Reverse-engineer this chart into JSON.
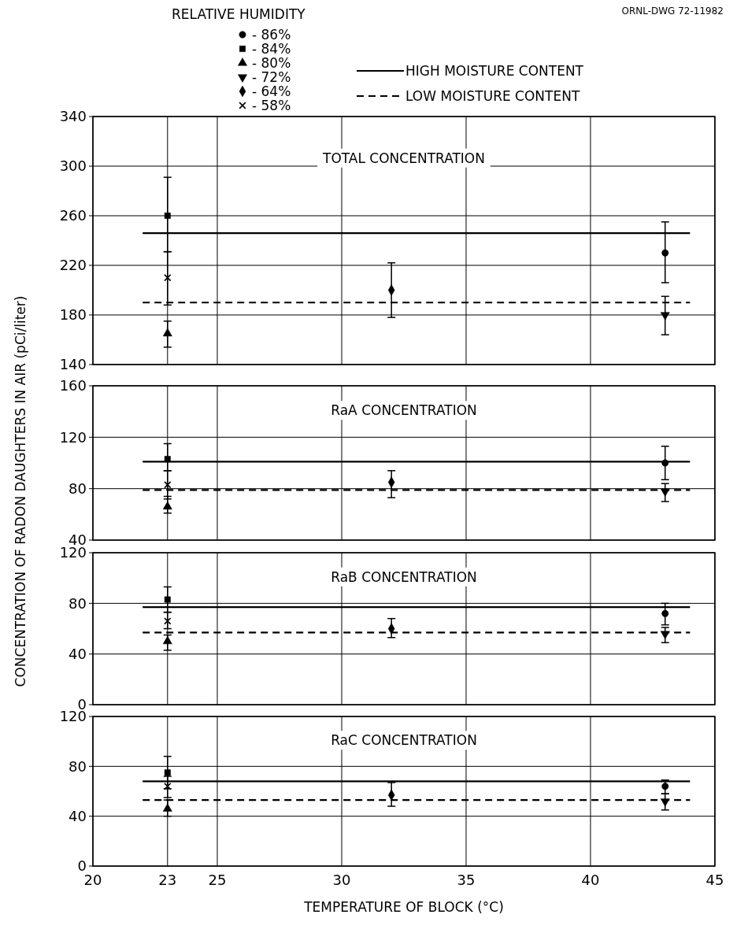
{
  "chart_data": [
    {
      "type": "scatter",
      "title": "TOTAL CONCENTRATION",
      "ylabel": "CONCENTRATION OF RADON DAUGHTERS IN AIR (pCi/liter)",
      "legend_title": "RELATIVE HUMIDITY",
      "annotations": [
        "ORNL-DWG 72-11982"
      ],
      "xlim": [
        20,
        45
      ],
      "xticks": [
        20,
        23,
        25,
        30,
        35,
        40,
        45
      ],
      "ylim": [
        140,
        340
      ],
      "yticks": [
        140,
        180,
        220,
        260,
        300,
        340
      ],
      "grid": true,
      "legend": "top",
      "tick_labels": "y",
      "series": [
        {
          "name": "- 86%",
          "color": "#000000",
          "marker": "circle",
          "x": [
            43
          ],
          "values": [
            230
          ],
          "errors": [
            [
              206,
              255
            ]
          ]
        },
        {
          "name": "- 84%",
          "color": "#000000",
          "marker": "square",
          "x": [
            23
          ],
          "values": [
            260
          ],
          "errors": [
            [
              231,
              291
            ]
          ]
        },
        {
          "name": "- 80%",
          "color": "#000000",
          "marker": "triangle",
          "x": [
            23
          ],
          "values": [
            165
          ],
          "errors": [
            [
              154,
              175
            ]
          ]
        },
        {
          "name": "- 72%",
          "color": "#000000",
          "marker": "triangle-down",
          "x": [
            43
          ],
          "values": [
            180
          ],
          "errors": [
            [
              164,
              195
            ]
          ]
        },
        {
          "name": "- 64%",
          "color": "#000000",
          "marker": "diamond",
          "x": [
            32
          ],
          "values": [
            200
          ],
          "errors": [
            [
              178,
              222
            ]
          ]
        },
        {
          "name": "- 58%",
          "color": "#000000",
          "marker": "cross",
          "x": [
            23
          ],
          "values": [
            210
          ],
          "errors": [
            [
              188,
              231
            ]
          ]
        },
        {
          "name": "HIGH MOISTURE CONTENT",
          "type": "line",
          "color": "#000000",
          "line_style": "solid",
          "x": [
            22,
            44
          ],
          "values": [
            246,
            246
          ]
        },
        {
          "name": "LOW MOISTURE CONTENT",
          "type": "line",
          "color": "#000000",
          "line_style": "dashed",
          "x": [
            22,
            44
          ],
          "values": [
            190,
            190
          ]
        }
      ]
    },
    {
      "type": "scatter",
      "title": "RaA CONCENTRATION",
      "xlim": [
        20,
        45
      ],
      "xticks": [
        20,
        23,
        25,
        30,
        35,
        40,
        45
      ],
      "ylim": [
        40,
        160
      ],
      "yticks": [
        40,
        80,
        120,
        160
      ],
      "grid": true,
      "tick_labels": "y",
      "series": [
        {
          "color": "#000000",
          "marker": "circle",
          "x": [
            43
          ],
          "values": [
            100
          ],
          "errors": [
            [
              87,
              113
            ]
          ]
        },
        {
          "color": "#000000",
          "marker": "square",
          "x": [
            23
          ],
          "values": [
            103
          ],
          "errors": [
            [
              94,
              115
            ]
          ]
        },
        {
          "color": "#000000",
          "marker": "triangle",
          "x": [
            23
          ],
          "values": [
            66
          ],
          "errors": [
            [
              61,
              74
            ]
          ]
        },
        {
          "color": "#000000",
          "marker": "triangle-down",
          "x": [
            43
          ],
          "values": [
            78
          ],
          "errors": [
            [
              70,
              84
            ]
          ]
        },
        {
          "color": "#000000",
          "marker": "diamond",
          "x": [
            32
          ],
          "values": [
            85
          ],
          "errors": [
            [
              73,
              94
            ]
          ]
        },
        {
          "color": "#000000",
          "marker": "cross",
          "x": [
            23
          ],
          "values": [
            83
          ],
          "errors": [
            [
              72,
              94
            ]
          ]
        },
        {
          "type": "line",
          "color": "#000000",
          "line_style": "solid",
          "x": [
            22,
            44
          ],
          "values": [
            101,
            101
          ]
        },
        {
          "type": "line",
          "color": "#000000",
          "line_style": "dashed",
          "x": [
            22,
            44
          ],
          "values": [
            79,
            79
          ]
        }
      ]
    },
    {
      "type": "scatter",
      "title": "RaB CONCENTRATION",
      "xlim": [
        20,
        45
      ],
      "xticks": [
        20,
        23,
        25,
        30,
        35,
        40,
        45
      ],
      "ylim": [
        0,
        120
      ],
      "yticks": [
        0,
        40,
        80,
        120
      ],
      "grid": true,
      "tick_labels": "y",
      "series": [
        {
          "color": "#000000",
          "marker": "circle",
          "x": [
            43
          ],
          "values": [
            72
          ],
          "errors": [
            [
              63,
              80
            ]
          ]
        },
        {
          "color": "#000000",
          "marker": "square",
          "x": [
            23
          ],
          "values": [
            83
          ],
          "errors": [
            [
              73,
              93
            ]
          ]
        },
        {
          "color": "#000000",
          "marker": "triangle",
          "x": [
            23
          ],
          "values": [
            50
          ],
          "errors": [
            [
              43,
              55
            ]
          ]
        },
        {
          "color": "#000000",
          "marker": "triangle-down",
          "x": [
            43
          ],
          "values": [
            56
          ],
          "errors": [
            [
              49,
              61
            ]
          ]
        },
        {
          "color": "#000000",
          "marker": "diamond",
          "x": [
            32
          ],
          "values": [
            60
          ],
          "errors": [
            [
              53,
              68
            ]
          ]
        },
        {
          "color": "#000000",
          "marker": "cross",
          "x": [
            23
          ],
          "values": [
            66
          ],
          "errors": [
            [
              60,
              73
            ]
          ]
        },
        {
          "type": "line",
          "color": "#000000",
          "line_style": "solid",
          "x": [
            22,
            44
          ],
          "values": [
            77,
            77
          ]
        },
        {
          "type": "line",
          "color": "#000000",
          "line_style": "dashed",
          "x": [
            22,
            44
          ],
          "values": [
            57,
            57
          ]
        }
      ]
    },
    {
      "type": "scatter",
      "title": "RaC CONCENTRATION",
      "xlabel": "TEMPERATURE OF BLOCK (°C)",
      "xlim": [
        20,
        45
      ],
      "xticks": [
        20,
        23,
        25,
        30,
        35,
        40,
        45
      ],
      "ylim": [
        0,
        120
      ],
      "yticks": [
        0,
        40,
        80,
        120
      ],
      "grid": true,
      "series": [
        {
          "color": "#000000",
          "marker": "circle",
          "x": [
            43
          ],
          "values": [
            64
          ],
          "errors": [
            [
              58,
              69
            ]
          ]
        },
        {
          "color": "#000000",
          "marker": "square",
          "x": [
            23
          ],
          "values": [
            75
          ],
          "errors": [
            [
              62,
              88
            ]
          ]
        },
        {
          "color": "#000000",
          "marker": "triangle",
          "x": [
            23
          ],
          "values": [
            46
          ],
          "errors": [
            [
              40,
              53
            ]
          ]
        },
        {
          "color": "#000000",
          "marker": "triangle-down",
          "x": [
            43
          ],
          "values": [
            52
          ],
          "errors": [
            [
              45,
              58
            ]
          ]
        },
        {
          "color": "#000000",
          "marker": "diamond",
          "x": [
            32
          ],
          "values": [
            57
          ],
          "errors": [
            [
              48,
              67
            ]
          ]
        },
        {
          "color": "#000000",
          "marker": "cross",
          "x": [
            23
          ],
          "values": [
            64
          ],
          "errors": [
            [
              55,
              72
            ]
          ]
        },
        {
          "type": "line",
          "color": "#000000",
          "line_style": "solid",
          "x": [
            22,
            44
          ],
          "values": [
            68,
            68
          ]
        },
        {
          "type": "line",
          "color": "#000000",
          "line_style": "dashed",
          "x": [
            22,
            44
          ],
          "values": [
            53,
            53
          ]
        }
      ]
    }
  ]
}
